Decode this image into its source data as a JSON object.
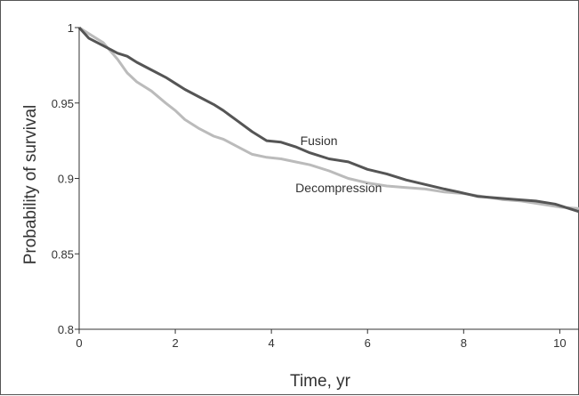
{
  "chart_data": {
    "type": "line",
    "title": "",
    "xlabel": "Time, yr",
    "ylabel": "Probability of survival",
    "xlim": [
      0,
      10.4
    ],
    "ylim": [
      0.8,
      1.0
    ],
    "x_ticks": [
      0,
      2,
      4,
      6,
      8,
      10
    ],
    "y_ticks": [
      0.8,
      0.85,
      0.9,
      0.95,
      1
    ],
    "y_tick_labels": [
      "0.8",
      "0.85",
      "0.9",
      "0.95",
      "1"
    ],
    "grid": false,
    "legend": "none",
    "series": [
      {
        "name": "Fusion",
        "color": "#555555",
        "label_at": [
          4.6,
          0.922
        ],
        "x": [
          0,
          0.2,
          0.5,
          0.8,
          1.0,
          1.2,
          1.5,
          1.8,
          2.0,
          2.2,
          2.5,
          2.8,
          3.0,
          3.3,
          3.6,
          3.9,
          4.2,
          4.5,
          4.8,
          5.2,
          5.6,
          6.0,
          6.4,
          6.8,
          7.2,
          7.6,
          7.9,
          8.3,
          8.7,
          9.1,
          9.5,
          9.9,
          10.2,
          10.4
        ],
        "y": [
          1.0,
          0.993,
          0.988,
          0.983,
          0.981,
          0.977,
          0.972,
          0.967,
          0.963,
          0.959,
          0.954,
          0.949,
          0.945,
          0.938,
          0.931,
          0.925,
          0.924,
          0.921,
          0.917,
          0.913,
          0.911,
          0.906,
          0.903,
          0.899,
          0.896,
          0.893,
          0.891,
          0.888,
          0.887,
          0.886,
          0.885,
          0.883,
          0.88,
          0.878
        ]
      },
      {
        "name": "Decompression",
        "color": "#bbbbbb",
        "label_at": [
          4.5,
          0.891
        ],
        "x": [
          0,
          0.2,
          0.5,
          0.8,
          1.0,
          1.2,
          1.5,
          1.8,
          2.0,
          2.2,
          2.5,
          2.8,
          3.0,
          3.3,
          3.6,
          3.9,
          4.2,
          4.5,
          4.8,
          5.2,
          5.6,
          6.0,
          6.4,
          6.8,
          7.2,
          7.6,
          8.0,
          8.4,
          8.8,
          9.2,
          9.6,
          10.0,
          10.4
        ],
        "y": [
          1.0,
          0.996,
          0.99,
          0.979,
          0.97,
          0.964,
          0.958,
          0.95,
          0.945,
          0.939,
          0.933,
          0.928,
          0.926,
          0.921,
          0.916,
          0.914,
          0.913,
          0.911,
          0.909,
          0.905,
          0.9,
          0.897,
          0.895,
          0.894,
          0.893,
          0.891,
          0.89,
          0.888,
          0.886,
          0.885,
          0.883,
          0.881,
          0.88
        ]
      }
    ]
  }
}
